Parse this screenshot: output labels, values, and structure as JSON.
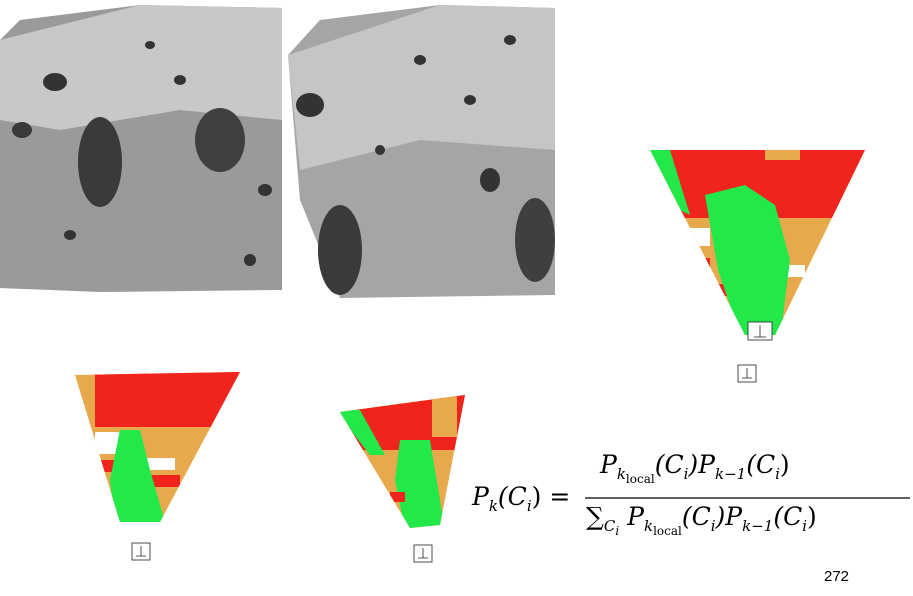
{
  "formula": {
    "lhs": [
      "P",
      "k",
      "(C",
      "i",
      ") ="
    ],
    "numerator": [
      "P",
      "k",
      "local",
      "(C",
      "i",
      ")P",
      "k−1",
      "(C",
      "i",
      ")"
    ],
    "denominator": [
      "∑",
      "C",
      "i",
      "P",
      "k",
      "local",
      "(C",
      "i",
      ")P",
      "k−1",
      "(C",
      "i",
      ")"
    ]
  },
  "page_number": "272"
}
